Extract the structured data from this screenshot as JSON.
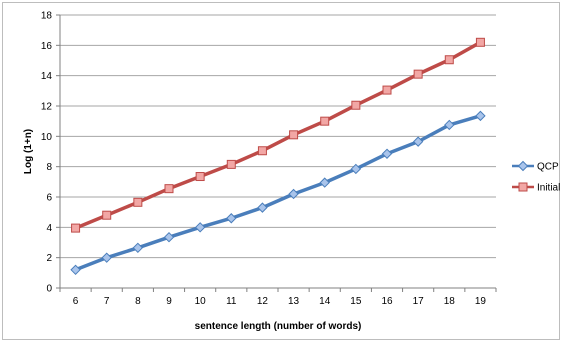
{
  "chart_data": {
    "type": "line",
    "title": "",
    "xlabel": "sentence length (number of words)",
    "ylabel": "Log (1+n)",
    "categories": [
      "6",
      "7",
      "8",
      "9",
      "10",
      "11",
      "12",
      "13",
      "14",
      "15",
      "16",
      "17",
      "18",
      "19"
    ],
    "ylim": [
      0,
      18
    ],
    "yticks": [
      0,
      2,
      4,
      6,
      8,
      10,
      12,
      14,
      16,
      18
    ],
    "grid": true,
    "legend_position": "right",
    "series": [
      {
        "name": "QCP",
        "color": "#4a7ebb",
        "marker": "diamond",
        "values": [
          1.2,
          2.0,
          2.65,
          3.35,
          4.0,
          4.6,
          5.3,
          6.2,
          6.95,
          7.85,
          8.85,
          9.65,
          10.75,
          11.35
        ]
      },
      {
        "name": "Initial",
        "color": "#be4b48",
        "marker": "square",
        "values": [
          3.95,
          4.8,
          5.65,
          6.55,
          7.35,
          8.15,
          9.05,
          10.1,
          11.0,
          12.05,
          13.05,
          14.1,
          15.05,
          16.2
        ]
      }
    ]
  }
}
